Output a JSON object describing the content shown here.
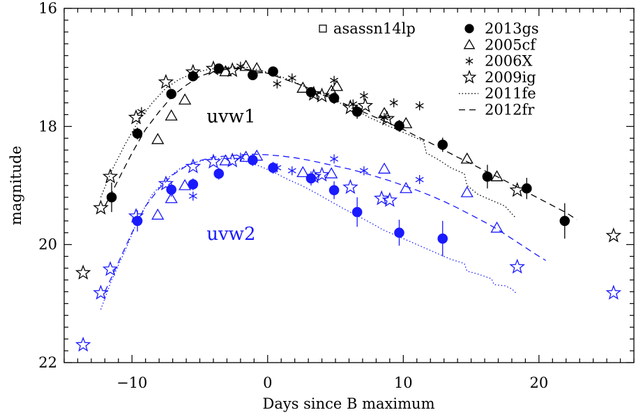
{
  "chart_data": {
    "type": "scatter",
    "title": "",
    "xlabel": "Days since B maximum",
    "ylabel": "magnitude",
    "xlim": [
      -15,
      27
    ],
    "ylim": [
      22,
      16
    ],
    "y_inverted": true,
    "x_ticks": [
      -10,
      0,
      10,
      20
    ],
    "y_ticks": [
      16,
      18,
      20,
      22
    ],
    "grid": false,
    "legend_position": "top-right",
    "legend": [
      {
        "label": "asassn14lp",
        "marker": "square-open"
      },
      {
        "label": "2013gs",
        "marker": "circle-filled"
      },
      {
        "label": "2005cf",
        "marker": "triangle-open"
      },
      {
        "label": "2006X",
        "marker": "asterisk"
      },
      {
        "label": "2009ig",
        "marker": "star-open"
      },
      {
        "label": "2011fe",
        "marker": "dotted-line"
      },
      {
        "label": "2012fr",
        "marker": "dashed-line"
      }
    ],
    "band_labels": [
      {
        "text": "uvw1",
        "color": "#000000",
        "x": -4.5,
        "y": 17.93
      },
      {
        "text": "uvw2",
        "color": "#1a1aff",
        "x": -4.5,
        "y": 19.92
      }
    ],
    "series": [
      {
        "band": "uvw1",
        "name": "2013gs",
        "marker": "circle-filled",
        "color": "#000000",
        "x": [
          -11.5,
          -9.6,
          -7.1,
          -5.5,
          -3.6,
          -1.1,
          0.4,
          3.2,
          4.9,
          6.6,
          9.7,
          12.9,
          16.2,
          19.1,
          21.9
        ],
        "y": [
          19.2,
          18.12,
          17.45,
          17.15,
          17.02,
          17.13,
          17.07,
          17.42,
          17.52,
          17.75,
          17.99,
          18.31,
          18.85,
          19.05,
          19.6
        ],
        "err": [
          0.25,
          0.1,
          0.08,
          0.07,
          0.06,
          0.06,
          0.06,
          0.08,
          0.1,
          0.12,
          0.1,
          0.12,
          0.2,
          0.18,
          0.3
        ]
      },
      {
        "band": "uvw1",
        "name": "2005cf",
        "marker": "triangle-open",
        "color": "#000000",
        "x": [
          -8.1,
          -7.1,
          -6.1,
          -3.1,
          -1.6,
          -0.8,
          2.6,
          4.7,
          5.1,
          8.6,
          10.2,
          14.7,
          16.9
        ],
        "y": [
          18.22,
          17.82,
          17.55,
          17.07,
          16.98,
          17.02,
          17.35,
          17.4,
          17.32,
          17.78,
          17.95,
          18.55,
          18.85
        ]
      },
      {
        "band": "uvw1",
        "name": "2006X",
        "marker": "asterisk",
        "color": "#000000",
        "x": [
          -9.3,
          -5.5,
          -2.0,
          0.7,
          1.8,
          4.9,
          6.3,
          7.1,
          8.6,
          9.3,
          11.2
        ],
        "y": [
          17.75,
          17.12,
          16.98,
          17.28,
          17.18,
          17.22,
          17.62,
          17.48,
          17.85,
          17.6,
          17.65
        ]
      },
      {
        "band": "uvw1",
        "name": "2009ig",
        "marker": "star-open",
        "color": "#000000",
        "x": [
          -13.6,
          -12.3,
          -11.6,
          -9.7,
          -7.5,
          -5.5,
          -4.0,
          -2.6,
          3.4,
          4.0,
          6.1,
          7.2,
          8.8,
          18.4,
          25.5
        ],
        "y": [
          20.48,
          19.38,
          18.85,
          17.85,
          17.25,
          17.08,
          17.02,
          17.05,
          17.45,
          17.48,
          17.68,
          17.65,
          17.87,
          19.08,
          19.85
        ]
      },
      {
        "band": "uvw1",
        "name": "2011fe",
        "marker": "dotted-line",
        "color": "#000000",
        "x": [
          -12.3,
          -11.5,
          -10.5,
          -9.5,
          -8.5,
          -7.5,
          -6.5,
          -5.5,
          -4.5,
          -3.5,
          -2.5,
          -1.5,
          -0.5,
          0.5,
          1.5,
          2.5,
          3.5,
          4.5,
          5.5,
          6.5,
          7.5,
          8.5,
          9.5,
          10.5,
          11.5,
          11.7,
          12.5,
          13.5,
          14.5,
          14.7,
          15.5,
          16.5,
          17.5,
          18.0,
          18.3
        ],
        "y": [
          19.2,
          18.75,
          18.3,
          17.9,
          17.6,
          17.35,
          17.2,
          17.1,
          17.04,
          17.0,
          16.99,
          17.0,
          17.05,
          17.12,
          17.2,
          17.3,
          17.4,
          17.52,
          17.62,
          17.72,
          17.85,
          17.95,
          18.05,
          18.15,
          18.25,
          18.45,
          18.55,
          18.7,
          18.8,
          19.0,
          19.15,
          19.25,
          19.35,
          19.48,
          19.55
        ]
      },
      {
        "band": "uvw1",
        "name": "2012fr",
        "marker": "dashed-line",
        "color": "#000000",
        "x": [
          -12.0,
          -11.0,
          -10.0,
          -9.0,
          -8.0,
          -7.0,
          -6.0,
          -5.0,
          -4.0,
          -3.0,
          -2.0,
          -1.0,
          0.0,
          1.0,
          2.0,
          3.0,
          4.0,
          5.0,
          6.0,
          7.0,
          8.0,
          9.0,
          10.0,
          11.0,
          12.0,
          13.0,
          14.0,
          15.0,
          16.0,
          17.0,
          18.0,
          19.0,
          20.0,
          21.0,
          22.0,
          22.8
        ],
        "y": [
          19.35,
          18.9,
          18.45,
          18.05,
          17.75,
          17.48,
          17.3,
          17.15,
          17.07,
          17.03,
          17.02,
          17.05,
          17.1,
          17.18,
          17.26,
          17.35,
          17.45,
          17.55,
          17.65,
          17.75,
          17.85,
          17.95,
          18.05,
          18.17,
          18.28,
          18.4,
          18.52,
          18.63,
          18.75,
          18.86,
          18.98,
          19.1,
          19.22,
          19.34,
          19.46,
          19.58
        ]
      },
      {
        "band": "uvw2",
        "name": "2013gs",
        "marker": "circle-filled",
        "color": "#1a1aff",
        "x": [
          -9.6,
          -7.1,
          -5.5,
          -3.6,
          -1.1,
          0.4,
          3.2,
          4.9,
          6.6,
          9.7,
          12.9
        ],
        "y": [
          19.6,
          19.07,
          18.98,
          18.8,
          18.57,
          18.7,
          18.88,
          19.08,
          19.45,
          19.8,
          19.9
        ],
        "err": [
          0.18,
          0.12,
          0.1,
          0.1,
          0.1,
          0.1,
          0.12,
          0.15,
          0.25,
          0.22,
          0.3
        ]
      },
      {
        "band": "uvw2",
        "name": "2005cf",
        "marker": "triangle-open",
        "color": "#1a1aff",
        "x": [
          -8.1,
          -7.1,
          -6.1,
          -3.1,
          -1.6,
          -0.8,
          2.6,
          4.7,
          8.6,
          10.2,
          14.7,
          16.9
        ],
        "y": [
          19.5,
          19.22,
          19.0,
          18.58,
          18.52,
          18.5,
          18.78,
          18.8,
          18.72,
          19.05,
          19.12,
          19.72
        ]
      },
      {
        "band": "uvw2",
        "name": "2006X",
        "marker": "asterisk",
        "color": "#1a1aff",
        "x": [
          -5.5,
          -2.0,
          0.7,
          1.8,
          4.9,
          7.1,
          11.2
        ],
        "y": [
          19.18,
          18.52,
          18.7,
          18.75,
          18.55,
          18.75,
          18.9
        ]
      },
      {
        "band": "uvw2",
        "name": "2009ig",
        "marker": "star-open",
        "color": "#1a1aff",
        "x": [
          -13.6,
          -12.3,
          -11.6,
          -9.7,
          -7.5,
          -5.5,
          -4.0,
          -2.6,
          3.4,
          4.0,
          6.1,
          8.4,
          9.0,
          18.4,
          25.5
        ],
        "y": [
          21.7,
          20.82,
          20.42,
          19.52,
          18.97,
          18.68,
          18.6,
          18.58,
          18.85,
          18.82,
          19.03,
          19.22,
          19.25,
          20.38,
          20.82
        ]
      },
      {
        "band": "uvw2",
        "name": "2011fe",
        "marker": "dotted-line",
        "color": "#1a1aff",
        "x": [
          -12.3,
          -11.5,
          -10.5,
          -9.5,
          -8.5,
          -7.5,
          -6.5,
          -5.5,
          -4.5,
          -3.5,
          -2.5,
          -1.5,
          -0.5,
          0.5,
          1.5,
          2.5,
          3.5,
          4.5,
          5.5,
          6.5,
          7.5,
          8.5,
          9.5,
          10.5,
          11.5,
          12.5,
          13.5,
          14.5,
          14.7,
          15.5,
          16.5,
          16.7,
          17.5,
          18.0,
          18.3
        ],
        "y": [
          21.1,
          20.6,
          20.1,
          19.55,
          19.15,
          18.9,
          18.72,
          18.62,
          18.56,
          18.54,
          18.55,
          18.6,
          18.68,
          18.78,
          18.9,
          19.0,
          19.12,
          19.25,
          19.38,
          19.5,
          19.62,
          19.75,
          19.85,
          19.95,
          20.05,
          20.15,
          20.25,
          20.32,
          20.45,
          20.5,
          20.58,
          20.68,
          20.7,
          20.75,
          20.82
        ]
      },
      {
        "band": "uvw2",
        "name": "2012fr",
        "marker": "dashed-line",
        "color": "#1a1aff",
        "x": [
          -12.0,
          -11.0,
          -10.0,
          -9.0,
          -8.0,
          -7.0,
          -6.0,
          -5.0,
          -4.0,
          -3.0,
          -2.0,
          -1.0,
          0.0,
          1.0,
          2.0,
          3.0,
          4.0,
          5.0,
          6.0,
          7.0,
          8.0,
          9.0,
          10.0,
          11.0,
          12.0,
          13.0,
          14.0,
          15.0,
          16.0,
          17.0,
          18.0,
          19.0,
          20.0,
          20.5
        ],
        "y": [
          20.8,
          20.3,
          19.8,
          19.35,
          19.05,
          18.82,
          18.67,
          18.58,
          18.52,
          18.5,
          18.48,
          18.47,
          18.48,
          18.5,
          18.53,
          18.57,
          18.62,
          18.67,
          18.72,
          18.78,
          18.85,
          18.92,
          19.0,
          19.08,
          19.17,
          19.27,
          19.38,
          19.5,
          19.62,
          19.75,
          19.9,
          20.05,
          20.2,
          20.27
        ]
      }
    ]
  }
}
